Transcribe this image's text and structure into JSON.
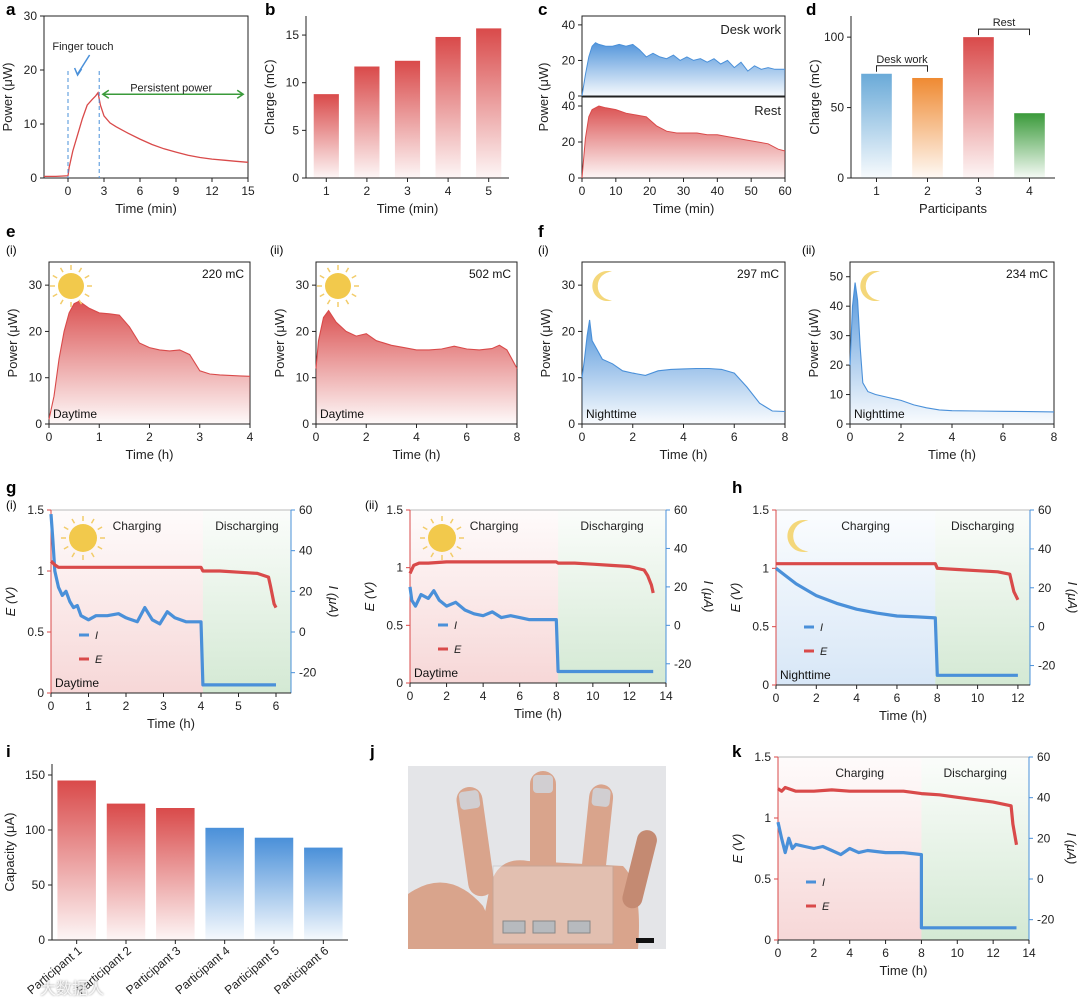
{
  "figure": {
    "panel_letters": [
      "a",
      "b",
      "c",
      "d",
      "e",
      "f",
      "g",
      "h",
      "i",
      "j",
      "k"
    ],
    "sub_labels": [
      "(i)",
      "(ii)"
    ],
    "watermark": "大数据人"
  },
  "chart_data": [
    {
      "id": "a",
      "type": "line",
      "xlabel": "Time (min)",
      "ylabel": "Power (μW)",
      "xlim": [
        -2,
        15
      ],
      "ylim": [
        0,
        30
      ],
      "xticks": [
        0,
        3,
        6,
        9,
        12,
        15
      ],
      "yticks": [
        0,
        10,
        20,
        30
      ],
      "series": [
        {
          "color": "#d94a4a",
          "x": [
            -2,
            -1,
            0,
            0.1,
            0.4,
            0.8,
            1.2,
            1.6,
            2.0,
            2.3,
            2.5,
            2.7,
            3.0,
            3.5,
            4,
            5,
            6,
            7,
            8,
            9,
            10,
            11,
            12,
            13,
            14,
            15
          ],
          "y": [
            0.3,
            0.3,
            0.4,
            2,
            5,
            8,
            11,
            13.5,
            14.5,
            15.2,
            15.8,
            13.5,
            11.5,
            10.2,
            9.5,
            8.3,
            7.2,
            6.2,
            5.4,
            4.8,
            4.2,
            3.8,
            3.5,
            3.3,
            3.1,
            2.9
          ]
        }
      ],
      "annotations": [
        "Finger touch",
        "Persistent power"
      ],
      "annotation_colors": {
        "finger_touch": "#4a90d9",
        "persistent_power": "#3a9a3a"
      }
    },
    {
      "id": "b",
      "type": "bar",
      "xlabel": "Time (min)",
      "ylabel": "Charge (mC)",
      "categories": [
        "1",
        "2",
        "3",
        "4",
        "5"
      ],
      "values": [
        8.8,
        11.7,
        12.3,
        14.8,
        15.7
      ],
      "ylim": [
        0,
        17
      ],
      "yticks": [
        0,
        5,
        10,
        15
      ],
      "color": "#d94a4a"
    },
    {
      "id": "c",
      "type": "area",
      "xlabel": "Time (min)",
      "ylabel": "Power (μW)",
      "xlim": [
        0,
        60
      ],
      "xticks": [
        0,
        10,
        20,
        30,
        40,
        50,
        60
      ],
      "series": [
        {
          "name": "Desk work",
          "color": "#4a90d9",
          "ylim": [
            0,
            45
          ],
          "yticks": [
            0,
            20,
            40
          ],
          "x": [
            0,
            1,
            2,
            3,
            4,
            5,
            7,
            9,
            11,
            13,
            15,
            17,
            19,
            21,
            23,
            25,
            27,
            29,
            31,
            33,
            35,
            37,
            39,
            41,
            43,
            45,
            47,
            49,
            51,
            53,
            55,
            57,
            60
          ],
          "y": [
            0,
            12,
            22,
            28,
            30,
            29,
            28,
            28,
            29,
            28,
            29,
            26,
            22,
            24,
            22,
            21,
            23,
            20,
            22,
            20,
            21,
            19,
            21,
            18,
            20,
            16,
            19,
            14,
            17,
            15,
            16,
            15,
            15
          ]
        },
        {
          "name": "Rest",
          "color": "#d94a4a",
          "ylim": [
            0,
            45
          ],
          "yticks": [
            0,
            20,
            40
          ],
          "x": [
            0,
            1,
            2,
            3,
            5,
            7,
            10,
            13,
            16,
            19,
            22,
            25,
            28,
            31,
            34,
            37,
            40,
            43,
            46,
            49,
            52,
            55,
            58,
            60
          ],
          "y": [
            0,
            22,
            34,
            38,
            40,
            39,
            38,
            36,
            35,
            34,
            29,
            26,
            25,
            25,
            25,
            24,
            24,
            23,
            22,
            21,
            20,
            19,
            16,
            15
          ]
        }
      ]
    },
    {
      "id": "d",
      "type": "bar",
      "xlabel": "Participants",
      "ylabel": "Charge (mC)",
      "categories": [
        "1",
        "2",
        "3",
        "4"
      ],
      "values": [
        74,
        71,
        100,
        46
      ],
      "colors": [
        "#6aaad8",
        "#ef8a32",
        "#d94a4a",
        "#3a9a3a"
      ],
      "ylim": [
        0,
        115
      ],
      "yticks": [
        0,
        50,
        100
      ],
      "groups": [
        {
          "label": "Desk work",
          "members": [
            1,
            2
          ]
        },
        {
          "label": "Rest",
          "members": [
            3,
            4
          ]
        }
      ]
    },
    {
      "id": "e-i",
      "type": "area",
      "xlabel": "Time (h)",
      "ylabel": "Power (μW)",
      "xlim": [
        0,
        4
      ],
      "ylim": [
        0,
        35
      ],
      "xticks": [
        0,
        1,
        2,
        3,
        4
      ],
      "yticks": [
        0,
        10,
        20,
        30
      ],
      "note": "220 mC",
      "condition": "Daytime",
      "icon": "sun-icon",
      "color": "#d94a4a",
      "x": [
        0,
        0.1,
        0.2,
        0.3,
        0.4,
        0.5,
        0.6,
        0.8,
        1.0,
        1.2,
        1.4,
        1.6,
        1.8,
        2.0,
        2.2,
        2.4,
        2.6,
        2.8,
        3.0,
        3.2,
        3.4,
        3.6,
        3.8,
        4.0
      ],
      "y": [
        1,
        6,
        14,
        20,
        24,
        26,
        26.5,
        25,
        24,
        23.8,
        23.5,
        21,
        17.5,
        16.5,
        16,
        15.8,
        16,
        15,
        11.5,
        10.8,
        10.6,
        10.5,
        10.4,
        10.3
      ]
    },
    {
      "id": "e-ii",
      "type": "area",
      "xlabel": "Time (h)",
      "ylabel": "Power (μW)",
      "xlim": [
        0,
        8
      ],
      "ylim": [
        0,
        35
      ],
      "xticks": [
        0,
        2,
        4,
        6,
        8
      ],
      "yticks": [
        0,
        10,
        20,
        30
      ],
      "note": "502 mC",
      "condition": "Daytime",
      "icon": "sun-icon",
      "color": "#d94a4a",
      "x": [
        0,
        0.1,
        0.3,
        0.5,
        0.8,
        1.2,
        1.6,
        2.0,
        2.4,
        3.0,
        3.5,
        4.0,
        4.5,
        5.0,
        5.5,
        6.0,
        6.5,
        7.0,
        7.3,
        7.6,
        7.8,
        8.0
      ],
      "y": [
        12,
        18,
        23,
        24.5,
        22,
        20,
        19,
        19.5,
        18,
        17,
        16.5,
        16,
        16,
        16.2,
        16.8,
        16.2,
        16,
        16.3,
        17,
        16,
        14,
        12
      ]
    },
    {
      "id": "f-i",
      "type": "area",
      "xlabel": "Time (h)",
      "ylabel": "Power (μW)",
      "xlim": [
        0,
        8
      ],
      "ylim": [
        0,
        35
      ],
      "xticks": [
        0,
        2,
        4,
        6,
        8
      ],
      "yticks": [
        0,
        10,
        20,
        30
      ],
      "note": "297 mC",
      "condition": "Nighttime",
      "icon": "moon-icon",
      "color": "#4a90d9",
      "x": [
        0,
        0.1,
        0.2,
        0.3,
        0.4,
        0.6,
        0.8,
        1.2,
        1.6,
        2.0,
        2.5,
        3.0,
        3.5,
        4.0,
        4.5,
        5.0,
        5.5,
        6.0,
        6.5,
        7.0,
        7.5,
        8.0
      ],
      "y": [
        10,
        14,
        19,
        22.5,
        18,
        16,
        14,
        13,
        11.5,
        11,
        10.5,
        11.5,
        11.8,
        11.9,
        12,
        12,
        11.8,
        11,
        8,
        4.5,
        2.8,
        2.7
      ]
    },
    {
      "id": "f-ii",
      "type": "area",
      "xlabel": "Time (h)",
      "ylabel": "Power (μW)",
      "xlim": [
        0,
        8
      ],
      "ylim": [
        0,
        55
      ],
      "xticks": [
        0,
        2,
        4,
        6,
        8
      ],
      "yticks": [
        0,
        10,
        20,
        30,
        40,
        50
      ],
      "note": "234 mC",
      "condition": "Nighttime",
      "icon": "moon-icon",
      "color": "#4a90d9",
      "x": [
        0,
        0.1,
        0.2,
        0.3,
        0.4,
        0.5,
        0.7,
        1.0,
        1.5,
        2.0,
        2.5,
        3.0,
        3.5,
        4.0,
        5.0,
        6.0,
        7.0,
        8.0
      ],
      "y": [
        20,
        40,
        48,
        42,
        26,
        14,
        11,
        10,
        9,
        8,
        6.5,
        5.5,
        4.8,
        4.5,
        4.4,
        4.3,
        4.2,
        4.1
      ]
    },
    {
      "id": "g-i",
      "type": "line",
      "xlabel": "Time (h)",
      "ylabel_left": "E (V)",
      "ylabel_right": "I (μA)",
      "xlim": [
        0,
        6.4
      ],
      "ylim_left": [
        0,
        1.5
      ],
      "ylim_right": [
        -30,
        60
      ],
      "xticks": [
        0,
        1,
        2,
        3,
        4,
        5,
        6
      ],
      "yticks_left": [
        0,
        0.5,
        1.0,
        1.5
      ],
      "yticks_right": [
        -20,
        0,
        20,
        40,
        60
      ],
      "phase_labels": [
        "Charging",
        "Discharging"
      ],
      "phase_split": 4.05,
      "condition": "Daytime",
      "icon": "sun-icon",
      "legend": [
        "I",
        "E"
      ],
      "E": {
        "x": [
          0,
          0.1,
          0.2,
          1,
          2,
          3,
          4.0,
          4.05,
          4.5,
          5,
          5.5,
          5.8,
          5.85,
          5.95,
          6.0
        ],
        "y": [
          1.08,
          1.05,
          1.03,
          1.03,
          1.03,
          1.03,
          1.03,
          1.0,
          1.0,
          0.99,
          0.98,
          0.95,
          0.88,
          0.73,
          0.7
        ]
      },
      "I": {
        "x": [
          0,
          0.05,
          0.1,
          0.2,
          0.3,
          0.4,
          0.5,
          0.6,
          0.7,
          0.8,
          1.0,
          1.2,
          1.5,
          1.8,
          2.0,
          2.3,
          2.5,
          2.7,
          2.9,
          3.1,
          3.3,
          3.6,
          4.0,
          4.05,
          4.5,
          5,
          5.5,
          6.0
        ],
        "y": [
          58,
          45,
          30,
          22,
          18,
          20,
          15,
          12,
          13,
          8,
          6,
          8,
          8,
          9,
          7,
          5,
          12,
          6,
          4,
          10,
          7,
          5,
          5,
          -26,
          -26,
          -26,
          -26,
          -26
        ]
      }
    },
    {
      "id": "g-ii",
      "type": "line",
      "xlabel": "Time (h)",
      "ylabel_left": "E (V)",
      "ylabel_right": "I (μA)",
      "xlim": [
        0,
        14
      ],
      "ylim_left": [
        0,
        1.5
      ],
      "ylim_right": [
        -30,
        60
      ],
      "xticks": [
        0,
        2,
        4,
        6,
        8,
        10,
        12,
        14
      ],
      "yticks_left": [
        0,
        0.5,
        1.0,
        1.5
      ],
      "yticks_right": [
        -20,
        0,
        20,
        40,
        60
      ],
      "phase_labels": [
        "Charging",
        "Discharging"
      ],
      "phase_split": 8.1,
      "condition": "Daytime",
      "icon": "sun-icon",
      "legend": [
        "I",
        "E"
      ],
      "E": {
        "x": [
          0,
          0.2,
          0.5,
          1,
          2,
          4,
          6,
          8,
          8.1,
          9,
          10,
          11,
          12,
          12.8,
          13.0,
          13.2,
          13.3
        ],
        "y": [
          0.95,
          1.02,
          1.04,
          1.04,
          1.05,
          1.05,
          1.05,
          1.05,
          1.04,
          1.04,
          1.03,
          1.02,
          1.01,
          0.98,
          0.93,
          0.85,
          0.78
        ]
      },
      "I": {
        "x": [
          0,
          0.1,
          0.3,
          0.6,
          1.0,
          1.3,
          1.6,
          2.0,
          2.5,
          3.0,
          3.5,
          4.0,
          4.5,
          5.0,
          5.5,
          6.0,
          6.5,
          7.0,
          8.0,
          8.1,
          9,
          10,
          11,
          12,
          13.3
        ],
        "y": [
          20,
          13,
          10,
          16,
          14,
          18,
          13,
          10,
          12,
          8,
          6,
          5,
          7,
          4,
          5,
          4,
          3,
          3,
          3,
          -24,
          -24,
          -24,
          -24,
          -24,
          -24
        ]
      }
    },
    {
      "id": "h",
      "type": "line",
      "xlabel": "Time (h)",
      "ylabel_left": "E (V)",
      "ylabel_right": "I (μA)",
      "xlim": [
        0,
        12.6
      ],
      "ylim_left": [
        0,
        1.5
      ],
      "ylim_right": [
        -30,
        60
      ],
      "xticks": [
        0,
        2,
        4,
        6,
        8,
        10,
        12
      ],
      "yticks_left": [
        0,
        0.5,
        1.0,
        1.5
      ],
      "yticks_right": [
        -20,
        0,
        20,
        40,
        60
      ],
      "phase_labels": [
        "Charging",
        "Discharging"
      ],
      "phase_split": 7.9,
      "condition": "Nighttime",
      "icon": "moon-icon",
      "legend": [
        "I",
        "E"
      ],
      "E": {
        "x": [
          0,
          2,
          4,
          6,
          7.9,
          8.0,
          9,
          10,
          11,
          11.6,
          11.8,
          12.0
        ],
        "y": [
          1.04,
          1.04,
          1.04,
          1.04,
          1.04,
          1.0,
          0.99,
          0.98,
          0.97,
          0.95,
          0.8,
          0.73
        ]
      },
      "I": {
        "x": [
          0,
          0.5,
          1,
          1.5,
          2,
          3,
          4,
          5,
          6,
          7,
          7.9,
          8.0,
          9,
          10,
          11,
          12
        ],
        "y": [
          30,
          26,
          22,
          19,
          16,
          12,
          9,
          7,
          5.5,
          5,
          4.5,
          -25,
          -25,
          -25,
          -25,
          -25
        ]
      }
    },
    {
      "id": "i",
      "type": "bar",
      "xlabel": "",
      "ylabel": "Capacity (μA)",
      "categories": [
        "Participant 1",
        "Participant 2",
        "Participant 3",
        "Participant 4",
        "Participant 5",
        "Participant 6"
      ],
      "values": [
        145,
        124,
        120,
        102,
        93,
        84
      ],
      "colors": [
        "#d94a4a",
        "#d94a4a",
        "#d94a4a",
        "#4a90d9",
        "#4a90d9",
        "#4a90d9"
      ],
      "ylim": [
        0,
        160
      ],
      "yticks": [
        0,
        50,
        100,
        150
      ]
    },
    {
      "id": "k",
      "type": "line",
      "xlabel": "Time (h)",
      "ylabel_left": "E (V)",
      "ylabel_right": "I (μA)",
      "xlim": [
        0,
        14
      ],
      "ylim_left": [
        0,
        1.5
      ],
      "ylim_right": [
        -30,
        60
      ],
      "xticks": [
        0,
        2,
        4,
        6,
        8,
        10,
        12,
        14
      ],
      "yticks_left": [
        0,
        0.5,
        1.0,
        1.5
      ],
      "yticks_right": [
        -20,
        0,
        20,
        40,
        60
      ],
      "phase_labels": [
        "Charging",
        "Discharging"
      ],
      "phase_split": 8.0,
      "legend": [
        "I",
        "E"
      ],
      "E": {
        "x": [
          0,
          0.2,
          0.4,
          1,
          2,
          3,
          4,
          5,
          6,
          7,
          8,
          9,
          10,
          11,
          12,
          13,
          13.1,
          13.3
        ],
        "y": [
          1.24,
          1.22,
          1.25,
          1.22,
          1.22,
          1.23,
          1.22,
          1.22,
          1.22,
          1.22,
          1.2,
          1.19,
          1.17,
          1.15,
          1.13,
          1.1,
          0.95,
          0.78
        ]
      },
      "I": {
        "x": [
          0,
          0.2,
          0.4,
          0.6,
          0.8,
          1,
          1.5,
          2,
          2.5,
          3,
          3.5,
          4,
          4.5,
          5,
          6,
          7,
          8,
          8.0,
          9,
          10,
          11,
          12,
          13.3
        ],
        "y": [
          28,
          20,
          13,
          20,
          15,
          17,
          16,
          15,
          16,
          14,
          12,
          15,
          13,
          14,
          13,
          13,
          12,
          -24,
          -24,
          -24,
          -24,
          -24,
          -24
        ]
      }
    }
  ],
  "photo": {
    "description_icon": "hand-with-finger-sensors-photo"
  },
  "colors": {
    "red": "#d94a4a",
    "blue": "#4a90d9",
    "green": "#3a9a3a",
    "orange": "#ef8a32"
  }
}
